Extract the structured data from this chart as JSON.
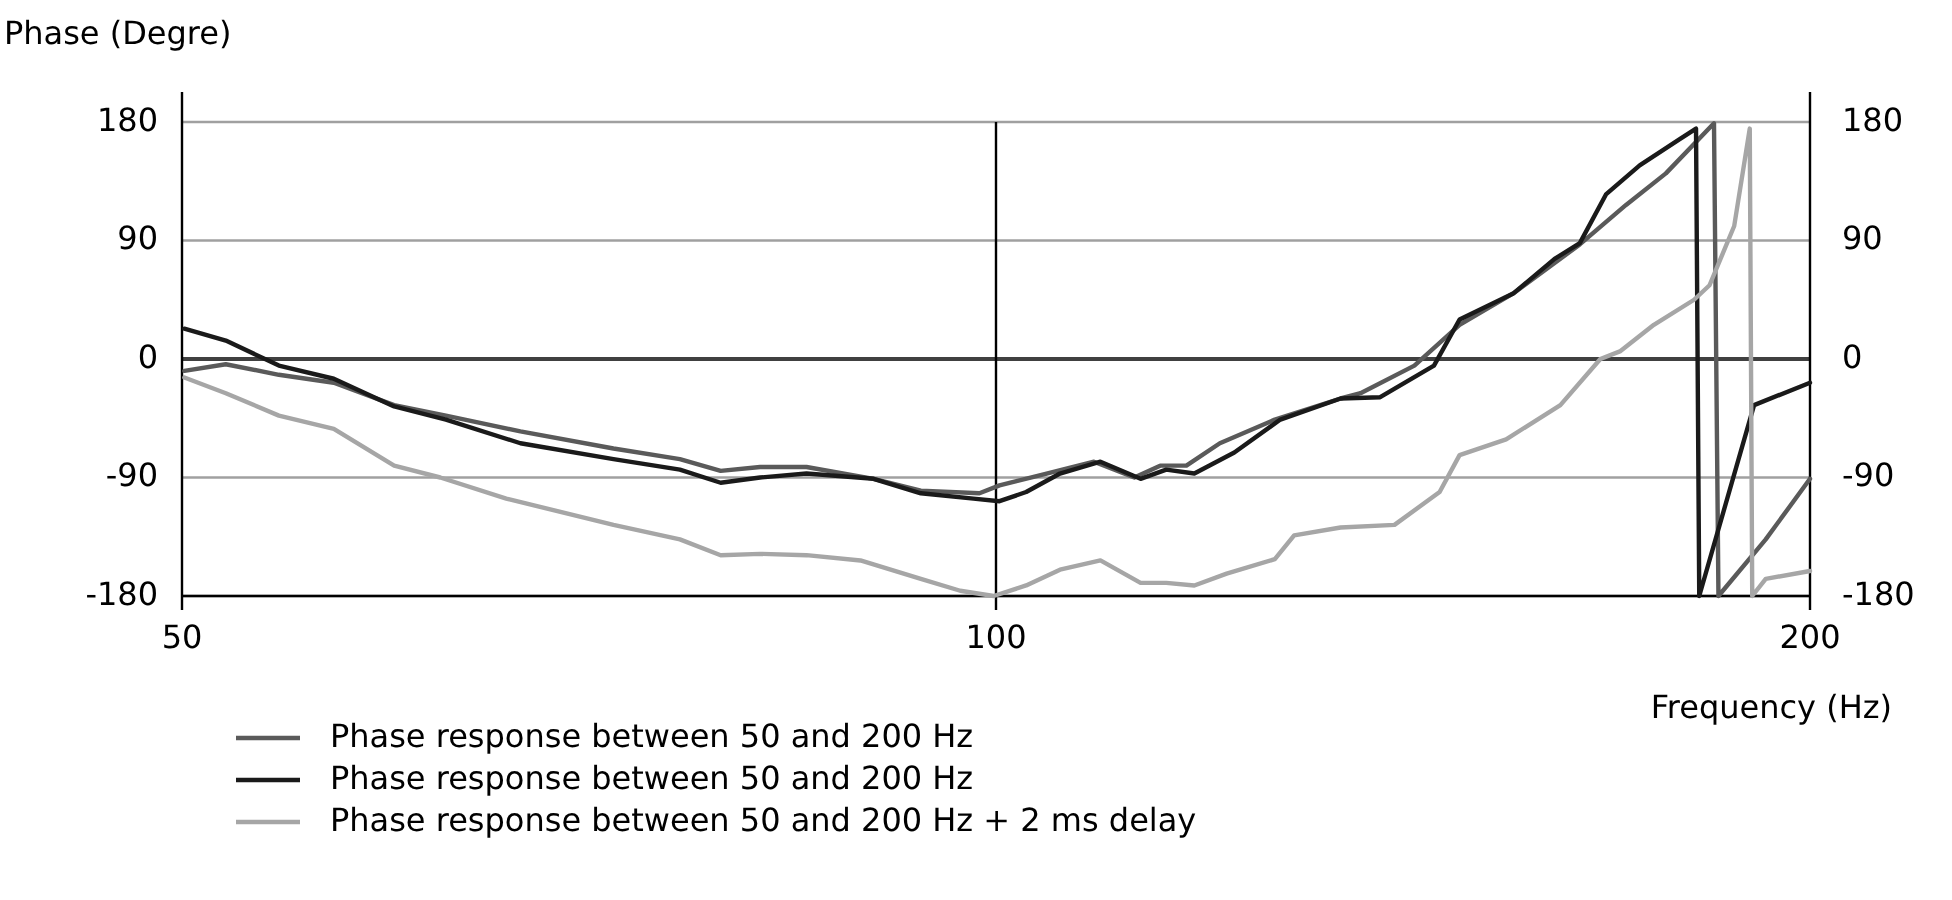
{
  "chart_data": {
    "type": "line",
    "ylabel": "Phase (Degre)",
    "xlabel": "Frequency (Hz)",
    "log": "x",
    "xlim": [
      50,
      200
    ],
    "xticks": [
      50,
      100,
      200
    ],
    "ylim": [
      -180,
      180
    ],
    "yticks": [
      -180,
      -90,
      0,
      90,
      180
    ],
    "y2lim": [
      -180,
      180
    ],
    "y2ticks": [
      -180,
      -90,
      0,
      90,
      180
    ],
    "grid": "y",
    "legend": "bottom",
    "line_style": "solid",
    "marker": "none",
    "ref_lines": [
      {
        "axis": "y",
        "value": 0,
        "color": "#404040"
      },
      {
        "axis": "x",
        "value": 100,
        "color": "#000000"
      }
    ],
    "series": [
      {
        "name": "Phase response between 50 and 200 Hz",
        "color": "#5a5a5a",
        "x": [
          50.1,
          51.9,
          54.3,
          56.9,
          59.9,
          62.6,
          66.7,
          72.2,
          76.4,
          79.1,
          81.8,
          85.1,
          90.1,
          93.8,
          98.6,
          100.3,
          104.4,
          108.7,
          112.5,
          115,
          117.6,
          121,
          126.8,
          134.1,
          136.4,
          142.8,
          148.4,
          155.4,
          164.4,
          171,
          176.9,
          184.3,
          185,
          192.6,
          200
        ],
        "values": [
          -9,
          -4,
          -12,
          -18,
          -35,
          -43,
          -55,
          -68,
          -76,
          -85,
          -82,
          -82,
          -91,
          -100,
          -102,
          -96,
          -87,
          -78,
          -90,
          -81,
          -81,
          -64,
          -46,
          -30,
          -26,
          -5,
          26,
          50,
          87,
          117,
          141,
          179,
          -180,
          -137,
          -91
        ]
      },
      {
        "name": "Phase response between 50 and 200 Hz",
        "color": "#1a1a1a",
        "x": [
          50.1,
          51.9,
          54.3,
          56.9,
          59.9,
          62.6,
          66.7,
          72.2,
          76.4,
          79.1,
          81.8,
          85.1,
          90.1,
          93.8,
          98.1,
          100.3,
          102.6,
          105.6,
          109.3,
          113.1,
          115.6,
          118.4,
          122.5,
          127.4,
          134.1,
          138.7,
          145.2,
          148.4,
          155.4,
          160.9,
          164.4,
          168.1,
          173,
          179,
          181.5,
          182,
          190.7,
          200
        ],
        "values": [
          23,
          14,
          -5,
          -15,
          -36,
          -46,
          -64,
          -76,
          -84,
          -94,
          -90,
          -87,
          -91,
          -102,
          -106,
          -108,
          -101,
          -87,
          -78,
          -91,
          -84,
          -87,
          -71,
          -46,
          -30,
          -29,
          -5,
          30,
          50,
          76,
          88,
          125,
          147,
          167,
          175,
          -180,
          -35,
          -18
        ]
      },
      {
        "name": "Phase response between 50 and 200 Hz + 2 ms delay",
        "color": "#a6a6a6",
        "x": [
          50.1,
          51.9,
          54.3,
          56.9,
          59.9,
          62.3,
          65.9,
          72.2,
          76.4,
          79.1,
          81.8,
          85.1,
          89.1,
          93.8,
          97,
          99.8,
          102.6,
          105.6,
          109.3,
          113.1,
          115.6,
          118.4,
          121.7,
          126.8,
          128.9,
          134.1,
          140.4,
          145.9,
          148.4,
          154.4,
          161.7,
          167.3,
          170.2,
          175.1,
          181.2,
          183.6,
          187.5,
          190,
          190.4,
          192.6,
          200
        ],
        "values": [
          -14,
          -26,
          -43,
          -53,
          -81,
          -90,
          -106,
          -126,
          -137,
          -149,
          -148,
          -149,
          -153,
          -167,
          -176,
          -180,
          -172,
          -160,
          -153,
          -170,
          -170,
          -172,
          -163,
          -152,
          -134,
          -128,
          -126,
          -101,
          -73,
          -61,
          -35,
          0,
          6,
          26,
          45,
          56,
          101,
          175,
          -180,
          -167,
          -161
        ]
      }
    ]
  }
}
